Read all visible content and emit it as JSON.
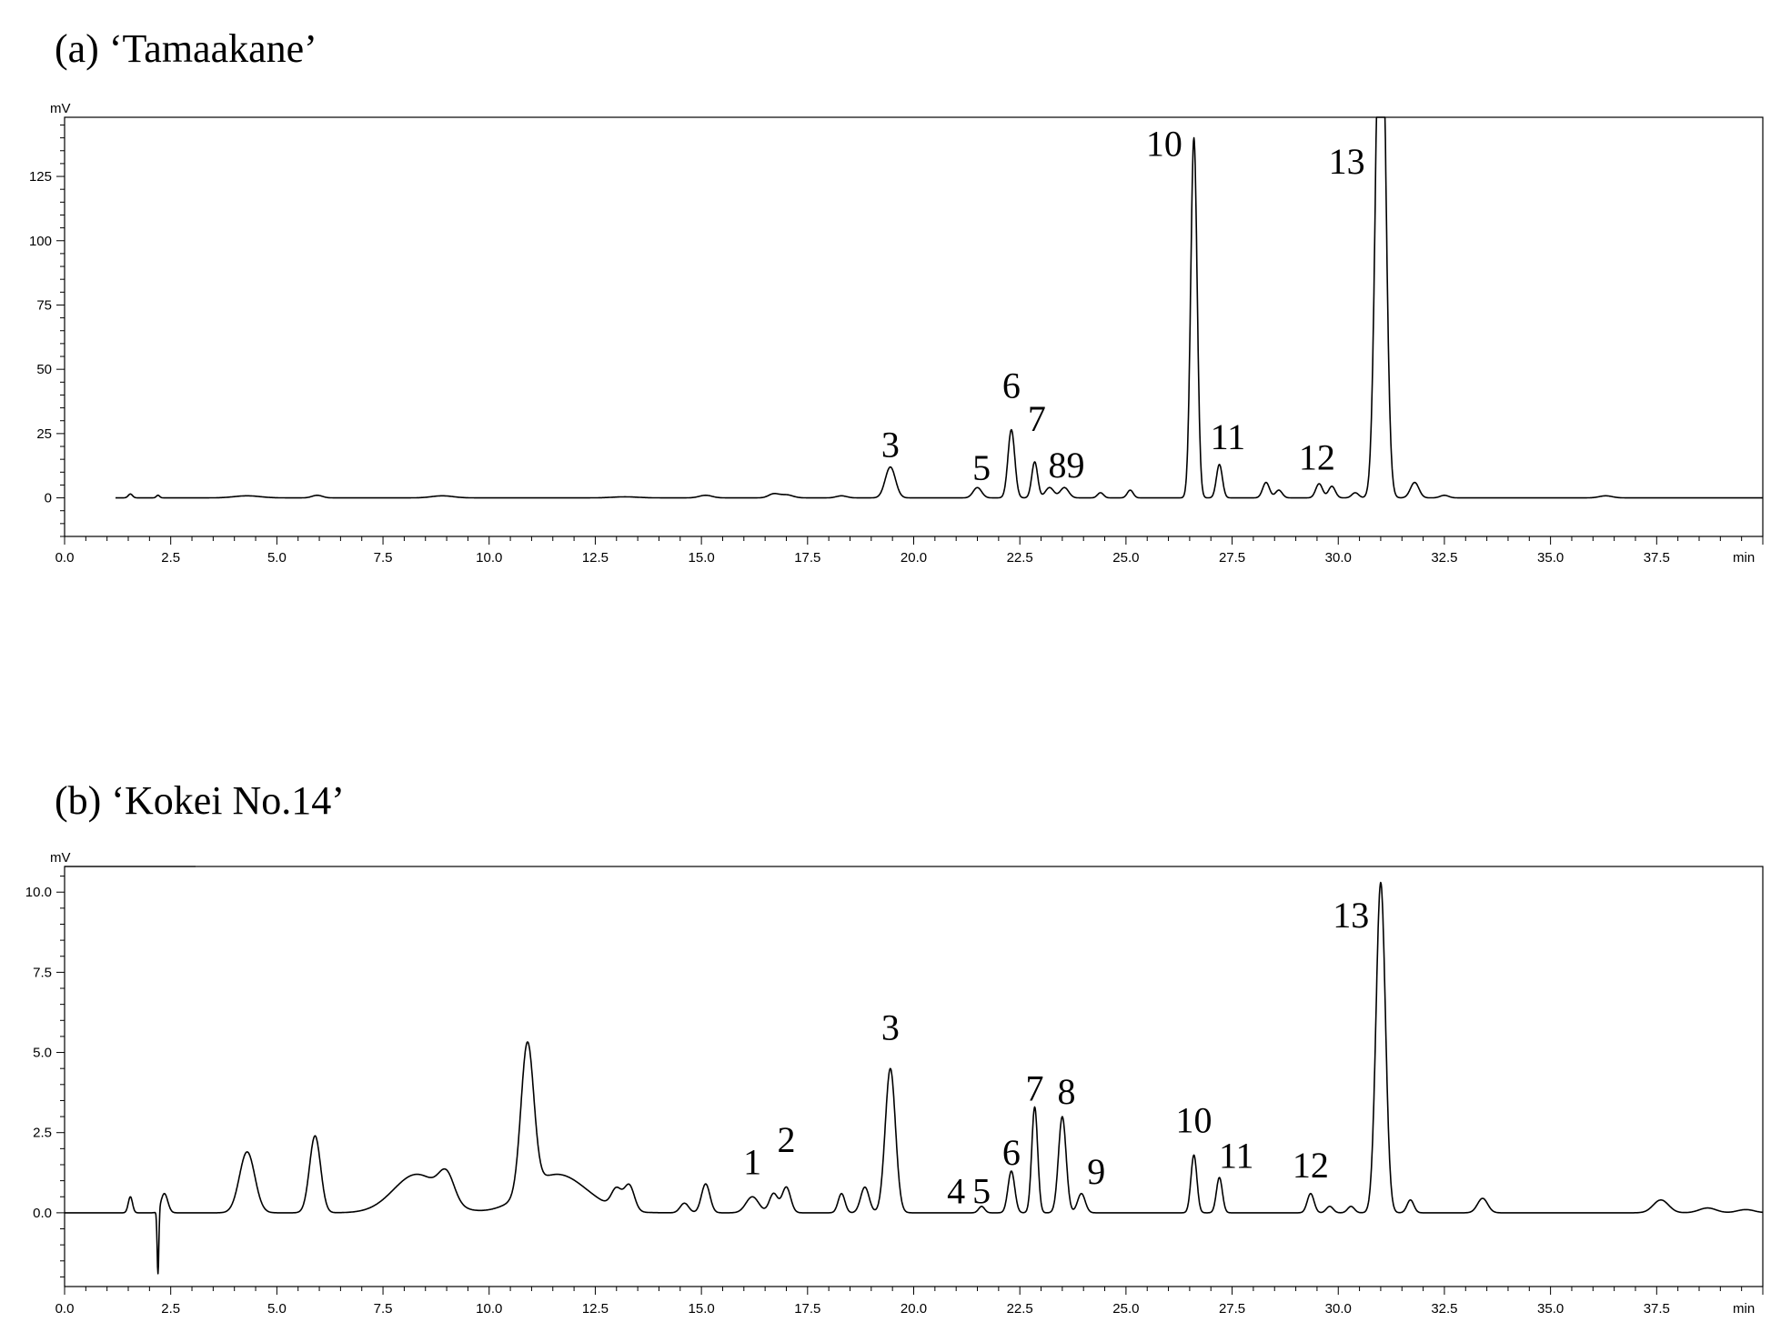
{
  "chart_data": [
    {
      "type": "line",
      "title": "(a) ‘Tamaakane’",
      "xlabel": "min",
      "ylabel": "mV",
      "xlim": [
        0,
        40
      ],
      "ylim": [
        -15,
        148
      ],
      "xticks": [
        0.0,
        2.5,
        5.0,
        7.5,
        10.0,
        12.5,
        15.0,
        17.5,
        20.0,
        22.5,
        25.0,
        27.5,
        30.0,
        32.5,
        35.0,
        37.5
      ],
      "xtick_labels": [
        "0.0",
        "2.5",
        "5.0",
        "7.5",
        "10.0",
        "12.5",
        "15.0",
        "17.5",
        "20.0",
        "22.5",
        "25.0",
        "27.5",
        "30.0",
        "32.5",
        "35.0",
        "37.5"
      ],
      "yticks": [
        0,
        25,
        50,
        75,
        100,
        125
      ],
      "ytick_labels": [
        "0",
        "25",
        "50",
        "75",
        "100",
        "125"
      ],
      "baseline_start": 1.2,
      "peaks": [
        {
          "t": 1.55,
          "h": 1.5,
          "w": 0.05
        },
        {
          "t": 2.2,
          "h": 1.0,
          "w": 0.04
        },
        {
          "t": 4.3,
          "h": 0.8,
          "w": 0.3
        },
        {
          "t": 5.95,
          "h": 1.0,
          "w": 0.12
        },
        {
          "t": 8.9,
          "h": 0.8,
          "w": 0.25
        },
        {
          "t": 13.2,
          "h": 0.4,
          "w": 0.3
        },
        {
          "t": 15.1,
          "h": 1.0,
          "w": 0.15
        },
        {
          "t": 16.7,
          "h": 1.5,
          "w": 0.12
        },
        {
          "t": 17.0,
          "h": 1.2,
          "w": 0.15
        },
        {
          "t": 18.3,
          "h": 0.8,
          "w": 0.12
        },
        {
          "t": 19.45,
          "h": 12.0,
          "w": 0.12
        },
        {
          "t": 21.5,
          "h": 4.0,
          "w": 0.1
        },
        {
          "t": 22.3,
          "h": 26.5,
          "w": 0.08
        },
        {
          "t": 22.85,
          "h": 14.0,
          "w": 0.07
        },
        {
          "t": 23.2,
          "h": 4.0,
          "w": 0.1
        },
        {
          "t": 23.55,
          "h": 4.0,
          "w": 0.1
        },
        {
          "t": 24.4,
          "h": 2.0,
          "w": 0.07
        },
        {
          "t": 25.1,
          "h": 3.0,
          "w": 0.07
        },
        {
          "t": 26.6,
          "h": 140.0,
          "w": 0.075
        },
        {
          "t": 27.2,
          "h": 13.0,
          "w": 0.07
        },
        {
          "t": 28.3,
          "h": 6.0,
          "w": 0.08
        },
        {
          "t": 28.6,
          "h": 3.0,
          "w": 0.08
        },
        {
          "t": 29.55,
          "h": 5.5,
          "w": 0.08
        },
        {
          "t": 29.85,
          "h": 4.5,
          "w": 0.08
        },
        {
          "t": 30.4,
          "h": 2.0,
          "w": 0.08
        },
        {
          "t": 31.0,
          "h": 230.0,
          "w": 0.11
        },
        {
          "t": 31.8,
          "h": 6.0,
          "w": 0.1
        },
        {
          "t": 32.5,
          "h": 1.0,
          "w": 0.1
        },
        {
          "t": 36.3,
          "h": 0.8,
          "w": 0.15
        }
      ],
      "annotations": [
        {
          "text": "3",
          "x": 19.45,
          "y": 16
        },
        {
          "text": "5",
          "x": 21.6,
          "y": 7
        },
        {
          "text": "6",
          "x": 22.3,
          "y": 39
        },
        {
          "text": "7",
          "x": 22.9,
          "y": 26
        },
        {
          "text": "89",
          "x": 23.6,
          "y": 8
        },
        {
          "text": "10",
          "x": 25.9,
          "y": 133
        },
        {
          "text": "11",
          "x": 27.4,
          "y": 19
        },
        {
          "text": "12",
          "x": 29.5,
          "y": 11
        },
        {
          "text": "13",
          "x": 30.2,
          "y": 126
        }
      ]
    },
    {
      "type": "line",
      "title": "(b) ‘Kokei No.14’",
      "xlabel": "min",
      "ylabel": "mV",
      "xlim": [
        0,
        40
      ],
      "ylim": [
        -2.3,
        10.8
      ],
      "xticks": [
        0.0,
        2.5,
        5.0,
        7.5,
        10.0,
        12.5,
        15.0,
        17.5,
        20.0,
        22.5,
        25.0,
        27.5,
        30.0,
        32.5,
        35.0,
        37.5
      ],
      "xtick_labels": [
        "0.0",
        "2.5",
        "5.0",
        "7.5",
        "10.0",
        "12.5",
        "15.0",
        "17.5",
        "20.0",
        "22.5",
        "25.0",
        "27.5",
        "30.0",
        "32.5",
        "35.0",
        "37.5"
      ],
      "yticks": [
        0.0,
        2.5,
        5.0,
        7.5,
        10.0
      ],
      "ytick_labels": [
        "0.0",
        "2.5",
        "5.0",
        "7.5",
        "10.0"
      ],
      "baseline_start": 0.0,
      "peaks": [
        {
          "t": 1.55,
          "h": 0.5,
          "w": 0.05
        },
        {
          "t": 2.2,
          "h": -2.0,
          "w": 0.02
        },
        {
          "t": 2.35,
          "h": 0.6,
          "w": 0.08
        },
        {
          "t": 4.3,
          "h": 1.9,
          "w": 0.18
        },
        {
          "t": 5.9,
          "h": 2.4,
          "w": 0.13
        },
        {
          "t": 8.3,
          "h": 1.2,
          "w": 0.55
        },
        {
          "t": 9.0,
          "h": 0.8,
          "w": 0.18
        },
        {
          "t": 10.9,
          "h": 4.6,
          "w": 0.15
        },
        {
          "t": 11.6,
          "h": 1.2,
          "w": 0.7
        },
        {
          "t": 13.0,
          "h": 0.6,
          "w": 0.12
        },
        {
          "t": 13.3,
          "h": 0.8,
          "w": 0.12
        },
        {
          "t": 14.6,
          "h": 0.3,
          "w": 0.1
        },
        {
          "t": 15.1,
          "h": 0.9,
          "w": 0.1
        },
        {
          "t": 16.2,
          "h": 0.5,
          "w": 0.15
        },
        {
          "t": 16.7,
          "h": 0.6,
          "w": 0.1
        },
        {
          "t": 17.0,
          "h": 0.8,
          "w": 0.1
        },
        {
          "t": 18.3,
          "h": 0.6,
          "w": 0.08
        },
        {
          "t": 18.85,
          "h": 0.8,
          "w": 0.1
        },
        {
          "t": 19.45,
          "h": 4.5,
          "w": 0.12
        },
        {
          "t": 21.6,
          "h": 0.2,
          "w": 0.07
        },
        {
          "t": 22.3,
          "h": 1.3,
          "w": 0.08
        },
        {
          "t": 22.85,
          "h": 3.3,
          "w": 0.07
        },
        {
          "t": 23.5,
          "h": 3.0,
          "w": 0.09
        },
        {
          "t": 23.95,
          "h": 0.6,
          "w": 0.09
        },
        {
          "t": 26.6,
          "h": 1.8,
          "w": 0.07
        },
        {
          "t": 27.2,
          "h": 1.1,
          "w": 0.07
        },
        {
          "t": 29.35,
          "h": 0.6,
          "w": 0.08
        },
        {
          "t": 29.8,
          "h": 0.2,
          "w": 0.08
        },
        {
          "t": 30.3,
          "h": 0.2,
          "w": 0.08
        },
        {
          "t": 31.0,
          "h": 10.3,
          "w": 0.11
        },
        {
          "t": 31.7,
          "h": 0.4,
          "w": 0.08
        },
        {
          "t": 33.4,
          "h": 0.45,
          "w": 0.12
        },
        {
          "t": 37.6,
          "h": 0.4,
          "w": 0.18
        },
        {
          "t": 38.7,
          "h": 0.15,
          "w": 0.2
        },
        {
          "t": 39.6,
          "h": 0.1,
          "w": 0.2
        }
      ],
      "annotations": [
        {
          "text": "1",
          "x": 16.2,
          "y": 1.2
        },
        {
          "text": "2",
          "x": 17.0,
          "y": 1.9
        },
        {
          "text": "3",
          "x": 19.45,
          "y": 5.4
        },
        {
          "text": "4",
          "x": 21.0,
          "y": 0.3
        },
        {
          "text": "5",
          "x": 21.6,
          "y": 0.3
        },
        {
          "text": "6",
          "x": 22.3,
          "y": 1.5
        },
        {
          "text": "7",
          "x": 22.85,
          "y": 3.5
        },
        {
          "text": "8",
          "x": 23.6,
          "y": 3.4
        },
        {
          "text": "9",
          "x": 24.3,
          "y": 0.9
        },
        {
          "text": "10",
          "x": 26.6,
          "y": 2.5
        },
        {
          "text": "11",
          "x": 27.6,
          "y": 1.4
        },
        {
          "text": "12",
          "x": 29.35,
          "y": 1.1
        },
        {
          "text": "13",
          "x": 30.3,
          "y": 8.9
        }
      ]
    }
  ]
}
